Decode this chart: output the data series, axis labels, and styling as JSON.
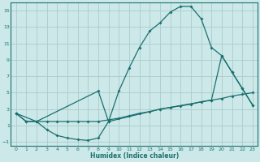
{
  "xlabel": "Humidex (Indice chaleur)",
  "bg_color": "#cce8e8",
  "grid_color": "#aacccc",
  "line_color": "#1a7070",
  "xlim": [
    -0.5,
    23.5
  ],
  "ylim": [
    -1.5,
    16.0
  ],
  "xticks": [
    0,
    1,
    2,
    3,
    4,
    5,
    6,
    7,
    8,
    9,
    10,
    11,
    12,
    13,
    14,
    15,
    16,
    17,
    18,
    19,
    20,
    21,
    22,
    23
  ],
  "yticks": [
    -1,
    1,
    3,
    5,
    7,
    9,
    11,
    13,
    15
  ],
  "line1_x": [
    0,
    1,
    2,
    3,
    4,
    5,
    6,
    7,
    8,
    9,
    10,
    11,
    12,
    13,
    14,
    15,
    16,
    17,
    18,
    19,
    20,
    21,
    22,
    23
  ],
  "line1_y": [
    2.5,
    1.5,
    1.5,
    0.5,
    -0.2,
    -0.5,
    -0.7,
    -0.8,
    -0.5,
    1.5,
    5.2,
    8.0,
    10.5,
    12.5,
    13.5,
    14.8,
    15.5,
    15.5,
    14.0,
    10.5,
    9.5,
    7.5,
    5.5,
    3.5
  ],
  "line2_x": [
    0,
    1,
    2,
    3,
    4,
    5,
    6,
    7,
    8,
    9,
    10,
    11,
    12,
    13,
    14,
    15,
    16,
    17,
    18,
    19,
    20,
    21,
    22,
    23
  ],
  "line2_y": [
    2.5,
    1.5,
    1.5,
    1.5,
    1.5,
    1.5,
    1.5,
    1.5,
    1.5,
    1.7,
    1.9,
    2.2,
    2.5,
    2.7,
    3.0,
    3.2,
    3.4,
    3.6,
    3.9,
    4.1,
    4.3,
    4.6,
    4.8,
    5.0
  ],
  "line3_x": [
    0,
    2,
    8,
    9,
    14,
    19,
    20,
    21,
    22,
    23
  ],
  "line3_y": [
    2.5,
    1.5,
    5.2,
    1.5,
    3.0,
    4.1,
    9.5,
    7.5,
    5.5,
    3.5
  ]
}
